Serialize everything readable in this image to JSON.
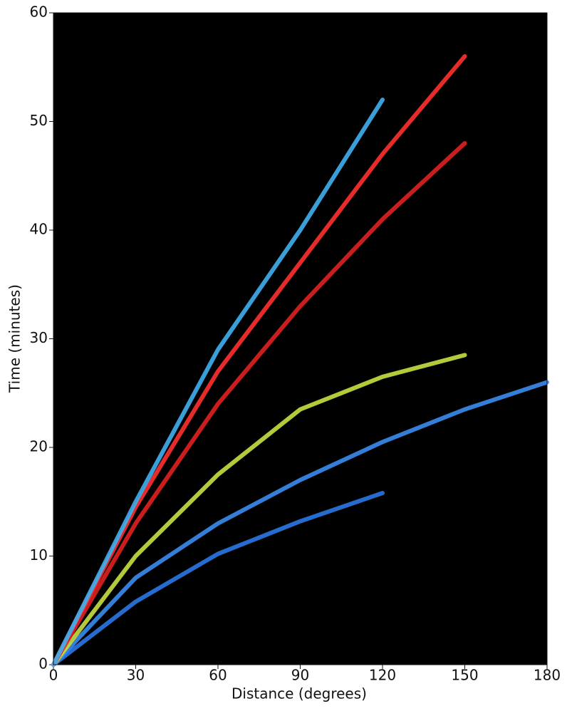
{
  "chart_data": {
    "type": "line",
    "xlabel": "Distance (degrees)",
    "ylabel": "Time (minutes)",
    "x": [
      0,
      30,
      60,
      90,
      120,
      150,
      180
    ],
    "series": [
      {
        "color": "#2a78e6",
        "values": [
          0,
          5.8,
          10.2,
          13.2,
          15.8,
          null,
          null
        ]
      },
      {
        "color": "#3a8cf0",
        "values": [
          0,
          8,
          13,
          17,
          20.5,
          23.5,
          26
        ]
      },
      {
        "color": "#c8e040",
        "values": [
          0,
          10,
          17.5,
          23.5,
          26.5,
          28.5,
          null
        ]
      },
      {
        "color": "#e02020",
        "values": [
          0,
          13,
          24,
          33,
          41,
          48,
          null
        ]
      },
      {
        "color": "#ff3030",
        "values": [
          0,
          14.5,
          27,
          37,
          47,
          56,
          null
        ]
      },
      {
        "color": "#40b0f0",
        "values": [
          0,
          15,
          29,
          40,
          52,
          null,
          null
        ]
      }
    ],
    "xlim": [
      0,
      180
    ],
    "ylim": [
      0,
      60
    ],
    "xticks": [
      0,
      30,
      60,
      90,
      120,
      150,
      180
    ],
    "yticks": [
      0,
      10,
      20,
      30,
      40,
      50,
      60
    ],
    "background": "#000000"
  }
}
